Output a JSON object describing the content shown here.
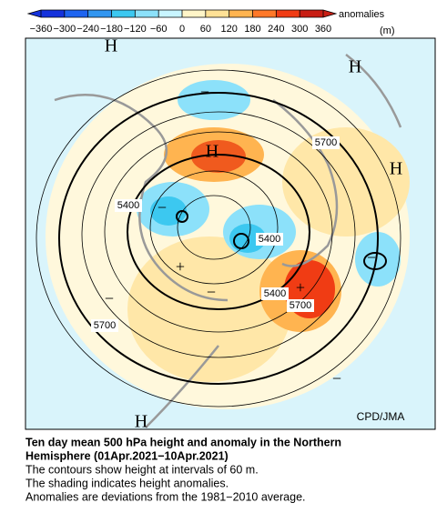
{
  "colorbar": {
    "ticks": [
      {
        "value": -360,
        "label": "−360"
      },
      {
        "value": -300,
        "label": "−300"
      },
      {
        "value": -240,
        "label": "−240"
      },
      {
        "value": -180,
        "label": "−180"
      },
      {
        "value": -120,
        "label": "−120"
      },
      {
        "value": -60,
        "label": "−60"
      },
      0,
      60,
      120,
      180,
      240,
      300,
      360
    ],
    "colors": [
      "#1432dc",
      "#1e64f0",
      "#3296f0",
      "#3cc8f0",
      "#8ce1fa",
      "#c8f5ff",
      "#fff5c8",
      "#ffe196",
      "#ffb450",
      "#ff7828",
      "#f03c14",
      "#c81e14"
    ],
    "label": "anomalies",
    "unit": "(m)"
  },
  "map": {
    "labels": [
      "H",
      "H",
      "H",
      "H",
      "H",
      "−",
      "−",
      "−",
      "−",
      "−",
      "−",
      "+",
      "+"
    ],
    "contour_labels": [
      "5700",
      "5400",
      "5400",
      "5400",
      "5700",
      "5700"
    ],
    "credit": "CPD/JMA"
  },
  "caption": {
    "title": [
      "Ten day mean 500 hPa height and anomaly in the Northern",
      "Hemisphere (01Apr.2021−10Apr.2021)"
    ],
    "notes": [
      "The contours show height at intervals of 60 m.",
      "The shading indicates height anomalies.",
      "Anomalies are deviations from the 1981−2010 average."
    ]
  }
}
